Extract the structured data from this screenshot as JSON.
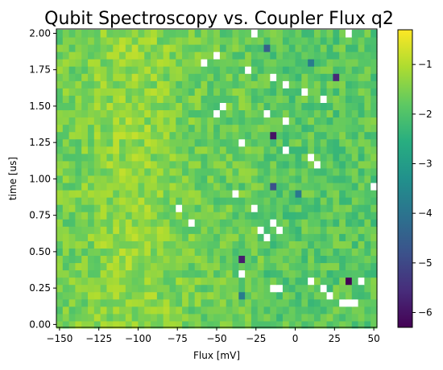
{
  "chart_data": {
    "type": "heatmap",
    "title": "Qubit Spectroscopy vs. Coupler Flux q2",
    "xlabel": "Flux [mV]",
    "ylabel": "time [us]",
    "xlim": [
      -152,
      52
    ],
    "ylim": [
      -0.02,
      2.03
    ],
    "x_ticks": [
      -150,
      -125,
      -100,
      -75,
      -50,
      -25,
      0,
      25,
      50
    ],
    "x_tick_labels": [
      "−150",
      "−125",
      "−100",
      "−75",
      "−50",
      "−25",
      "0",
      "25",
      "50"
    ],
    "y_ticks": [
      0.0,
      0.25,
      0.5,
      0.75,
      1.0,
      1.25,
      1.5,
      1.75,
      2.0
    ],
    "y_tick_labels": [
      "0.00",
      "0.25",
      "0.50",
      "0.75",
      "1.00",
      "1.25",
      "1.50",
      "1.75",
      "2.00"
    ],
    "grid": false,
    "colormap": "viridis",
    "colorbar": {
      "range": [
        -6.3,
        -0.3
      ],
      "ticks": [
        -1,
        -2,
        -3,
        -4,
        -5,
        -6
      ],
      "tick_labels": [
        "−1",
        "−2",
        "−3",
        "−4",
        "−5",
        "−6"
      ]
    },
    "grid_shape": {
      "columns": 51,
      "rows": 41
    },
    "x_step_mV": 4,
    "y_step_us": 0.05,
    "typical_value_range": [
      -2.2,
      -1.0
    ],
    "nan_cells": [
      [
        -25,
        2.0
      ],
      [
        33,
        2.0
      ],
      [
        -50,
        1.85
      ],
      [
        -58,
        1.8
      ],
      [
        -30,
        1.75
      ],
      [
        -13,
        1.7
      ],
      [
        -5,
        1.65
      ],
      [
        5,
        1.6
      ],
      [
        18,
        1.55
      ],
      [
        -45,
        1.5
      ],
      [
        -50,
        1.45
      ],
      [
        -17,
        1.45
      ],
      [
        -5,
        1.4
      ],
      [
        -33,
        1.25
      ],
      [
        -5,
        1.2
      ],
      [
        8,
        1.15
      ],
      [
        12,
        1.1
      ],
      [
        50,
        0.95
      ],
      [
        -37,
        0.9
      ],
      [
        -75,
        0.8
      ],
      [
        -25,
        0.8
      ],
      [
        -66,
        0.7
      ],
      [
        -13,
        0.7
      ],
      [
        -21,
        0.65
      ],
      [
        -9,
        0.65
      ],
      [
        -17,
        0.6
      ],
      [
        -33,
        0.35
      ],
      [
        42,
        0.3
      ],
      [
        -9,
        0.25
      ],
      [
        -13,
        0.25
      ],
      [
        8,
        0.3
      ],
      [
        17,
        0.25
      ],
      [
        21,
        0.2
      ],
      [
        28,
        0.15
      ],
      [
        33,
        0.15
      ],
      [
        38,
        0.15
      ]
    ],
    "low_value_cells": [
      {
        "x": -17,
        "y": 1.9,
        "value": -4.5
      },
      {
        "x": 8,
        "y": 1.8,
        "value": -3.8
      },
      {
        "x": 25,
        "y": 1.7,
        "value": -5.6
      },
      {
        "x": -13,
        "y": 1.3,
        "value": -6.0
      },
      {
        "x": -13,
        "y": 0.95,
        "value": -4.8
      },
      {
        "x": -33,
        "y": 0.45,
        "value": -5.8
      },
      {
        "x": 33,
        "y": 0.3,
        "value": -6.3
      },
      {
        "x": 0,
        "y": 0.9,
        "value": -3.9
      },
      {
        "x": -33,
        "y": 0.2,
        "value": -3.8
      }
    ]
  }
}
